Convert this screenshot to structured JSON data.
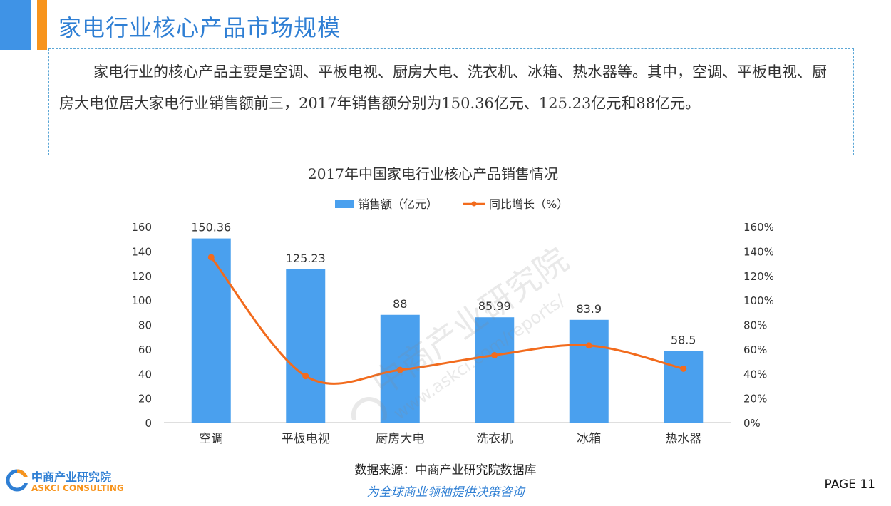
{
  "header": {
    "title": "家电行业核心产品市场规模"
  },
  "intro": {
    "text": "家电行业的核心产品主要是空调、平板电视、厨房大电、洗衣机、冰箱、热水器等。其中，空调、平板电视、厨房大电位居大家电行业销售额前三，2017年销售额分别为150.36亿元、125.23亿元和88亿元。"
  },
  "chart_data": {
    "type": "bar",
    "title": "2017年中国家电行业核心产品销售情况",
    "categories": [
      "空调",
      "平板电视",
      "厨房大电",
      "洗衣机",
      "冰箱",
      "热水器"
    ],
    "series": [
      {
        "name": "销售额（亿元）",
        "type": "bar",
        "axis": "left",
        "color": "#4aa0ee",
        "values": [
          150.36,
          125.23,
          88,
          85.99,
          83.9,
          58.5
        ],
        "labels": [
          "150.36",
          "125.23",
          "88",
          "85.99",
          "83.9",
          "58.5"
        ]
      },
      {
        "name": "同比增长（%）",
        "type": "line",
        "axis": "right",
        "color": "#f26b1d",
        "values": [
          135,
          38,
          43,
          55,
          63,
          44
        ]
      }
    ],
    "y_left": {
      "min": 0,
      "max": 160,
      "step": 20,
      "ticks": [
        "0",
        "20",
        "40",
        "60",
        "80",
        "100",
        "120",
        "140",
        "160"
      ]
    },
    "y_right": {
      "min": 0,
      "max": 160,
      "step": 20,
      "ticks": [
        "0%",
        "20%",
        "40%",
        "60%",
        "80%",
        "100%",
        "120%",
        "140%",
        "160%"
      ]
    },
    "legend_position": "top",
    "grid": false
  },
  "footer": {
    "source": "数据来源：中商产业研究院数据库",
    "slogan": "为全球商业领袖提供决策咨询",
    "page": "PAGE 11"
  },
  "logo": {
    "cn": "中商产业研究院",
    "en": "ASKCI CONSULTING"
  },
  "watermark": {
    "cn": "中商产业研究院",
    "url": "www.askci.com/reports/"
  }
}
